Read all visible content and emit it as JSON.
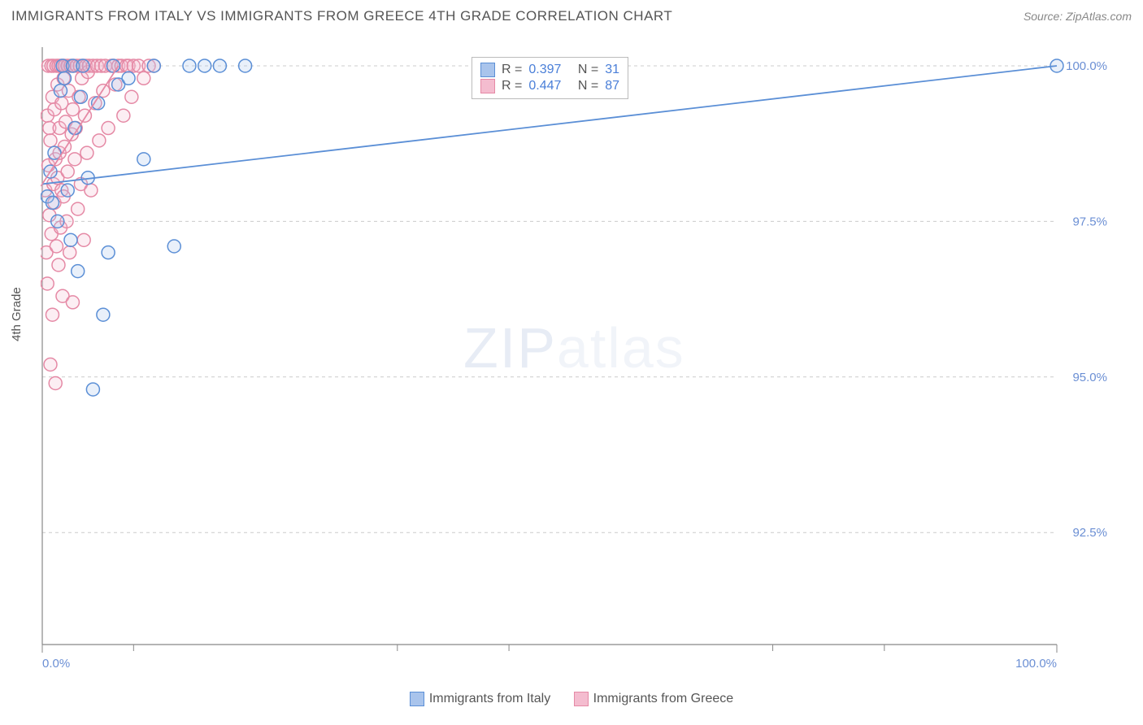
{
  "title": "IMMIGRANTS FROM ITALY VS IMMIGRANTS FROM GREECE 4TH GRADE CORRELATION CHART",
  "source": "Source: ZipAtlas.com",
  "ylabel": "4th Grade",
  "watermark_bold": "ZIP",
  "watermark_light": "atlas",
  "chart": {
    "type": "scatter-correlation",
    "background_color": "#ffffff",
    "grid_color": "#cccccc",
    "axis_color": "#888888",
    "tick_label_color": "#6b8fd4",
    "x_range": [
      0,
      100
    ],
    "y_range": [
      90.7,
      100.3
    ],
    "x_ticks": [
      0,
      100
    ],
    "x_tick_labels": [
      "0.0%",
      "100.0%"
    ],
    "x_minor_ticks": [
      9,
      35,
      46,
      72,
      83
    ],
    "y_ticks": [
      92.5,
      95.0,
      97.5,
      100.0
    ],
    "y_tick_labels": [
      "92.5%",
      "95.0%",
      "97.5%",
      "100.0%"
    ],
    "marker_radius": 8,
    "marker_stroke_width": 1.5,
    "marker_fill_opacity": 0.25,
    "regression_line_width": 1.8,
    "series": [
      {
        "name": "Immigrants from Italy",
        "color_stroke": "#5b8fd6",
        "color_fill": "#a9c4ec",
        "R": 0.397,
        "N": 31,
        "regression": {
          "x1": 0,
          "y1": 98.1,
          "x2": 100,
          "y2": 100.0
        },
        "points": [
          [
            0.5,
            97.9
          ],
          [
            0.8,
            98.3
          ],
          [
            1.0,
            97.8
          ],
          [
            1.2,
            98.6
          ],
          [
            1.5,
            97.5
          ],
          [
            1.8,
            99.6
          ],
          [
            2.0,
            100.0
          ],
          [
            2.2,
            99.8
          ],
          [
            2.5,
            98.0
          ],
          [
            2.8,
            97.2
          ],
          [
            3.0,
            100.0
          ],
          [
            3.2,
            99.0
          ],
          [
            3.5,
            96.7
          ],
          [
            3.8,
            99.5
          ],
          [
            4.0,
            100.0
          ],
          [
            4.5,
            98.2
          ],
          [
            5.0,
            94.8
          ],
          [
            5.5,
            99.4
          ],
          [
            6.0,
            96.0
          ],
          [
            6.5,
            97.0
          ],
          [
            7.0,
            100.0
          ],
          [
            7.5,
            99.7
          ],
          [
            8.5,
            99.8
          ],
          [
            10.0,
            98.5
          ],
          [
            11.0,
            100.0
          ],
          [
            13.0,
            97.1
          ],
          [
            14.5,
            100.0
          ],
          [
            16.0,
            100.0
          ],
          [
            17.5,
            100.0
          ],
          [
            20.0,
            100.0
          ],
          [
            100.0,
            100.0
          ]
        ]
      },
      {
        "name": "Immigrants from Greece",
        "color_stroke": "#e589a5",
        "color_fill": "#f4bccf",
        "R": 0.447,
        "N": 87,
        "regression": {
          "x1": 0,
          "y1": 98.1,
          "x2": 7.5,
          "y2": 100.0
        },
        "points": [
          [
            0.3,
            98.0
          ],
          [
            0.4,
            97.0
          ],
          [
            0.5,
            99.2
          ],
          [
            0.5,
            96.5
          ],
          [
            0.6,
            98.4
          ],
          [
            0.6,
            100.0
          ],
          [
            0.7,
            97.6
          ],
          [
            0.7,
            99.0
          ],
          [
            0.8,
            98.8
          ],
          [
            0.8,
            95.2
          ],
          [
            0.9,
            100.0
          ],
          [
            0.9,
            97.3
          ],
          [
            1.0,
            99.5
          ],
          [
            1.0,
            96.0
          ],
          [
            1.1,
            98.1
          ],
          [
            1.1,
            100.0
          ],
          [
            1.2,
            97.8
          ],
          [
            1.2,
            99.3
          ],
          [
            1.3,
            98.5
          ],
          [
            1.3,
            94.9
          ],
          [
            1.4,
            100.0
          ],
          [
            1.4,
            97.1
          ],
          [
            1.5,
            99.7
          ],
          [
            1.5,
            98.2
          ],
          [
            1.6,
            96.8
          ],
          [
            1.6,
            100.0
          ],
          [
            1.7,
            99.0
          ],
          [
            1.7,
            98.6
          ],
          [
            1.8,
            97.4
          ],
          [
            1.8,
            100.0
          ],
          [
            1.9,
            99.4
          ],
          [
            1.9,
            98.0
          ],
          [
            2.0,
            96.3
          ],
          [
            2.0,
            100.0
          ],
          [
            2.1,
            99.8
          ],
          [
            2.1,
            97.9
          ],
          [
            2.2,
            98.7
          ],
          [
            2.2,
            100.0
          ],
          [
            2.3,
            99.1
          ],
          [
            2.4,
            97.5
          ],
          [
            2.5,
            100.0
          ],
          [
            2.5,
            98.3
          ],
          [
            2.6,
            99.6
          ],
          [
            2.7,
            97.0
          ],
          [
            2.8,
            100.0
          ],
          [
            2.9,
            98.9
          ],
          [
            3.0,
            99.3
          ],
          [
            3.0,
            96.2
          ],
          [
            3.1,
            100.0
          ],
          [
            3.2,
            98.5
          ],
          [
            3.3,
            99.0
          ],
          [
            3.4,
            100.0
          ],
          [
            3.5,
            97.7
          ],
          [
            3.6,
            99.5
          ],
          [
            3.7,
            100.0
          ],
          [
            3.8,
            98.1
          ],
          [
            3.9,
            99.8
          ],
          [
            4.0,
            100.0
          ],
          [
            4.1,
            97.2
          ],
          [
            4.2,
            99.2
          ],
          [
            4.3,
            100.0
          ],
          [
            4.4,
            98.6
          ],
          [
            4.5,
            99.9
          ],
          [
            4.6,
            100.0
          ],
          [
            4.8,
            98.0
          ],
          [
            5.0,
            100.0
          ],
          [
            5.2,
            99.4
          ],
          [
            5.4,
            100.0
          ],
          [
            5.6,
            98.8
          ],
          [
            5.8,
            100.0
          ],
          [
            6.0,
            99.6
          ],
          [
            6.2,
            100.0
          ],
          [
            6.5,
            99.0
          ],
          [
            6.8,
            100.0
          ],
          [
            7.0,
            100.0
          ],
          [
            7.2,
            99.7
          ],
          [
            7.5,
            100.0
          ],
          [
            7.8,
            100.0
          ],
          [
            8.0,
            99.2
          ],
          [
            8.3,
            100.0
          ],
          [
            8.5,
            100.0
          ],
          [
            8.8,
            99.5
          ],
          [
            9.0,
            100.0
          ],
          [
            9.5,
            100.0
          ],
          [
            10.0,
            99.8
          ],
          [
            10.5,
            100.0
          ],
          [
            11.0,
            100.0
          ]
        ]
      }
    ]
  },
  "stats_box": {
    "R_label": "R =",
    "N_label": "N ="
  },
  "legend_label_1": "Immigrants from Italy",
  "legend_label_2": "Immigrants from Greece"
}
